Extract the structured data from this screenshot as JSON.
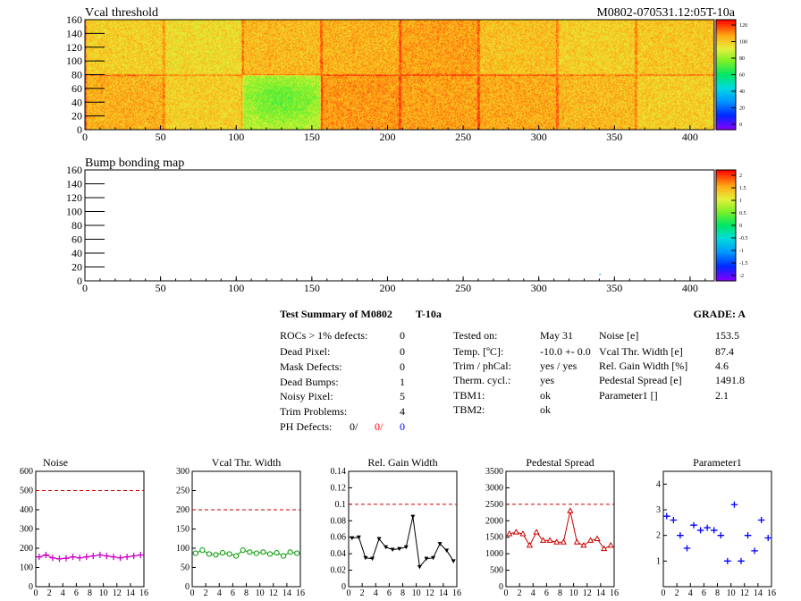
{
  "maps": {
    "threshold": {
      "title": "Vcal threshold",
      "module_label": "M0802-070531.12:05T-10a",
      "xlim": [
        0,
        416
      ],
      "ylim": [
        0,
        160
      ],
      "x_ticks": [
        0,
        50,
        100,
        150,
        200,
        250,
        300,
        350,
        400
      ],
      "y_ticks": [
        0,
        20,
        40,
        60,
        80,
        100,
        120,
        140,
        160
      ],
      "palette_ticks": [
        "120",
        "100",
        "80",
        "60",
        "40",
        "20",
        "0"
      ],
      "palette_range": [
        0,
        130
      ]
    },
    "bump": {
      "title": "Bump bonding map",
      "xlim": [
        0,
        416
      ],
      "ylim": [
        0,
        160
      ],
      "x_ticks": [
        0,
        50,
        100,
        150,
        200,
        250,
        300,
        350,
        400
      ],
      "y_ticks": [
        0,
        20,
        40,
        60,
        80,
        100,
        120,
        140,
        160
      ],
      "palette_ticks": [
        "2",
        "1.5",
        "1",
        "0.5",
        "0",
        "-0.5",
        "-1",
        "-1.5",
        "-2"
      ],
      "palette_range": [
        -2,
        2
      ],
      "marked_pixels": [
        {
          "x": 340,
          "y": 9
        }
      ]
    }
  },
  "summary": {
    "title": "Test Summary of M0802",
    "tag": "T-10a",
    "grade_label": "GRADE:  A",
    "defects": [
      {
        "label": "ROCs > 1% defects:",
        "value": "0"
      },
      {
        "label": "Dead Pixel:",
        "value": "0"
      },
      {
        "label": "Mask Defects:",
        "value": "0"
      },
      {
        "label": "Dead Bumps:",
        "value": "1"
      },
      {
        "label": "Noisy Pixel:",
        "value": "5"
      },
      {
        "label": "Trim Problems:",
        "value": "4"
      }
    ],
    "ph_defects": {
      "label": "PH Defects:",
      "a": "0/",
      "b": "0/",
      "c": "0",
      "b_color": "#ff0000",
      "c_color": "#0000ff"
    },
    "conditions": [
      {
        "label": "Tested on:",
        "value": "May 31"
      },
      {
        "label": "Temp. [ºC]:",
        "value": "-10.0 +- 0.0"
      },
      {
        "label": "Trim / phCal:",
        "value": "yes / yes"
      },
      {
        "label": "Therm. cycl.:",
        "value": "yes"
      },
      {
        "label": "TBM1:",
        "value": "ok"
      },
      {
        "label": "TBM2:",
        "value": "ok"
      }
    ],
    "results": [
      {
        "label": "Noise [e]",
        "value": "153.5"
      },
      {
        "label": "Vcal Thr. Width [e]",
        "value": "87.4"
      },
      {
        "label": "Rel. Gain Width [%]",
        "value": "4.6"
      },
      {
        "label": "Pedestal Spread [e]",
        "value": "1491.8"
      },
      {
        "label": "Parameter1 []",
        "value": "2.1"
      }
    ]
  },
  "chart_data": [
    {
      "type": "line",
      "title": "Noise",
      "color": "#cc00cc",
      "marker": "cross",
      "x": [
        0,
        1,
        2,
        3,
        4,
        5,
        6,
        7,
        8,
        9,
        10,
        11,
        12,
        13,
        14,
        15
      ],
      "values": [
        155,
        165,
        150,
        145,
        148,
        155,
        150,
        155,
        160,
        165,
        160,
        155,
        150,
        155,
        160,
        165
      ],
      "xlim": [
        0,
        16
      ],
      "ylim": [
        0,
        600
      ],
      "limit": 500,
      "x_ticks": [
        0,
        2,
        4,
        6,
        8,
        10,
        12,
        14,
        16
      ],
      "y_ticks": [
        0,
        100,
        200,
        300,
        400,
        500,
        600
      ]
    },
    {
      "type": "line",
      "title": "Vcal Thr. Width",
      "color": "#009900",
      "marker": "circle",
      "x": [
        0,
        1,
        2,
        3,
        4,
        5,
        6,
        7,
        8,
        9,
        10,
        11,
        12,
        13,
        14,
        15
      ],
      "values": [
        87,
        95,
        85,
        83,
        88,
        85,
        80,
        95,
        90,
        87,
        90,
        85,
        88,
        80,
        90,
        87
      ],
      "xlim": [
        0,
        16
      ],
      "ylim": [
        0,
        300
      ],
      "limit": 200,
      "x_ticks": [
        0,
        2,
        4,
        6,
        8,
        10,
        12,
        14,
        16
      ],
      "y_ticks": [
        0,
        50,
        100,
        150,
        200,
        250,
        300
      ]
    },
    {
      "type": "line",
      "title": "Rel. Gain Width",
      "color": "#000000",
      "marker": "triangle-down",
      "x": [
        0,
        1,
        2,
        3,
        4,
        5,
        6,
        7,
        8,
        9,
        10,
        11,
        12,
        13,
        14,
        15
      ],
      "values": [
        0.059,
        0.06,
        0.035,
        0.034,
        0.058,
        0.048,
        0.045,
        0.046,
        0.048,
        0.085,
        0.024,
        0.034,
        0.035,
        0.052,
        0.044,
        0.031
      ],
      "xlim": [
        0,
        16
      ],
      "ylim": [
        0,
        0.14
      ],
      "limit": 0.1,
      "x_ticks": [
        0,
        2,
        4,
        6,
        8,
        10,
        12,
        14,
        16
      ],
      "y_ticks": [
        0,
        0.02,
        0.04,
        0.06,
        0.08,
        0.1,
        0.12,
        0.14
      ]
    },
    {
      "type": "line",
      "title": "Pedestal Spread",
      "color": "#cc0000",
      "marker": "triangle-up",
      "x": [
        0,
        1,
        2,
        3,
        4,
        5,
        6,
        7,
        8,
        9,
        10,
        11,
        12,
        13,
        14,
        15
      ],
      "values": [
        1600,
        1650,
        1600,
        1250,
        1650,
        1400,
        1400,
        1350,
        1350,
        2300,
        1350,
        1250,
        1400,
        1450,
        1150,
        1250
      ],
      "xlim": [
        0,
        16
      ],
      "ylim": [
        0,
        3500
      ],
      "limit": 2500,
      "x_ticks": [
        0,
        2,
        4,
        6,
        8,
        10,
        12,
        14,
        16
      ],
      "y_ticks": [
        0,
        500,
        1000,
        1500,
        2000,
        2500,
        3000,
        3500
      ]
    },
    {
      "type": "scatter",
      "title": "Parameter1",
      "color": "#0000ff",
      "marker": "cross",
      "x": [
        0,
        1,
        2,
        3,
        4,
        5,
        6,
        7,
        8,
        9,
        10,
        11,
        12,
        13,
        14,
        15
      ],
      "values": [
        2.75,
        2.6,
        2.0,
        1.5,
        2.4,
        2.2,
        2.3,
        2.2,
        2.0,
        1.0,
        3.2,
        1.0,
        2.0,
        1.4,
        2.6,
        1.9
      ],
      "xlim": [
        0,
        16
      ],
      "ylim": [
        0,
        4.5
      ],
      "x_ticks": [
        0,
        2,
        4,
        6,
        8,
        10,
        12,
        14,
        16
      ],
      "y_ticks": [
        1,
        2,
        3,
        4
      ]
    }
  ]
}
